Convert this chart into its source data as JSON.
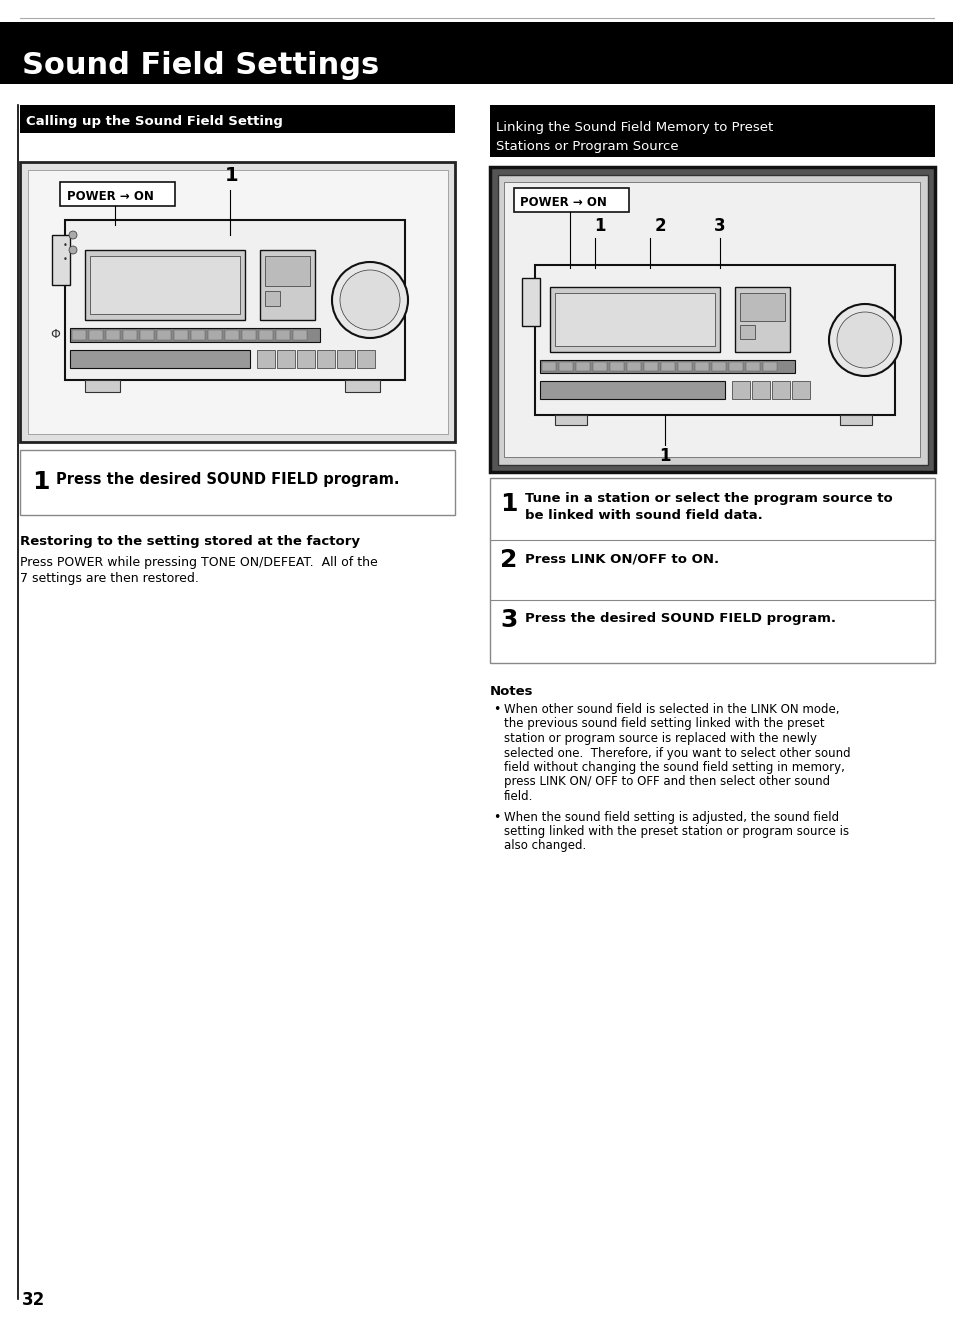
{
  "title": "Sound Field Settings",
  "title_bg": "#000000",
  "title_color": "#ffffff",
  "page_bg": "#ffffff",
  "left_section_header": "Calling up the Sound Field Setting",
  "right_section_header_line1": "Linking the Sound Field Memory to Preset",
  "right_section_header_line2": "Stations or Program Source",
  "section_header_bg": "#000000",
  "section_header_color": "#ffffff",
  "left_step1_num": "1",
  "left_step1_text": "Press the desired SOUND FIELD program.",
  "restore_title": "Restoring to the setting stored at the factory",
  "restore_text_line1": "Press POWER while pressing TONE ON/DEFEAT.  All of the",
  "restore_text_line2": "7 settings are then restored.",
  "right_step1_num": "1",
  "right_step1_text_line1": "Tune in a station or select the program source to",
  "right_step1_text_line2": "be linked with sound field data.",
  "right_step2_num": "2",
  "right_step2_text": "Press LINK ON/OFF to ON.",
  "right_step3_num": "3",
  "right_step3_text": "Press the desired SOUND FIELD program.",
  "notes_title": "Notes",
  "note1_line1": "When other sound field is selected in the LINK ON mode,",
  "note1_line2": "the previous sound field setting linked with the preset",
  "note1_line3": "station or program source is replaced with the newly",
  "note1_line4": "selected one.  Therefore, if you want to select other sound",
  "note1_line5": "field without changing the sound field setting in memory,",
  "note1_line6": "press LINK ON/ OFF to OFF and then select other sound",
  "note1_line7": "field.",
  "note2_line1": "When the sound field setting is adjusted, the sound field",
  "note2_line2": "setting linked with the preset station or program source is",
  "note2_line3": "also changed.",
  "page_number": "32",
  "img_noise_color": "#888888"
}
